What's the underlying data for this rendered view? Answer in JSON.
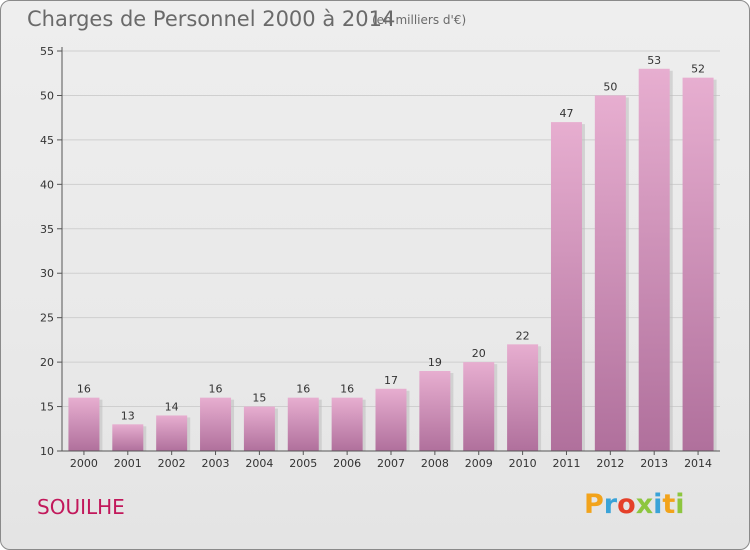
{
  "header": {
    "title": "Charges de Personnel 2000 à 2014",
    "unit_note": "(en milliers d'€)"
  },
  "footer": {
    "commune": "SOUILHE",
    "logo_text": "Proxiti"
  },
  "colors": {
    "bar_light": "#e7aed0",
    "bar_dark": "#b0709c",
    "commune_text": "#c2185b",
    "axis": "#555555"
  },
  "chart_data": {
    "type": "bar",
    "title": "Charges de Personnel 2000 à 2014",
    "subtitle": "(en milliers d'€)",
    "xlabel": "",
    "ylabel": "",
    "categories": [
      "2000",
      "2001",
      "2002",
      "2003",
      "2004",
      "2005",
      "2006",
      "2007",
      "2008",
      "2009",
      "2010",
      "2011",
      "2012",
      "2013",
      "2014"
    ],
    "values": [
      16,
      13,
      14,
      16,
      15,
      16,
      16,
      17,
      19,
      20,
      22,
      47,
      50,
      53,
      52
    ],
    "ylim": [
      10,
      55
    ],
    "yticks": [
      10,
      15,
      20,
      25,
      30,
      35,
      40,
      45,
      50,
      55
    ],
    "grid": true,
    "legend": "none"
  }
}
